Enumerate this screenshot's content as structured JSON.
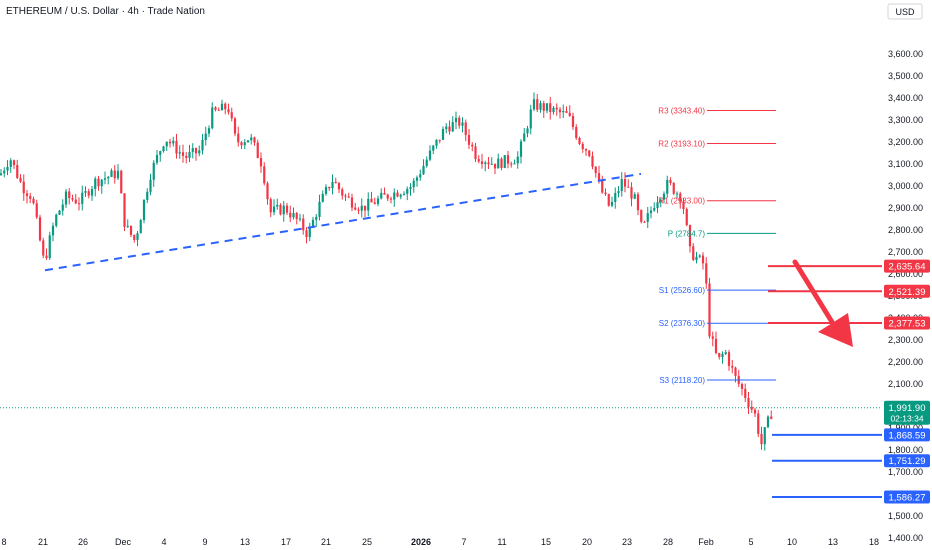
{
  "header": {
    "title": "ETHEREUM / U.S. Dollar · 4h · Trade Nation",
    "currency": "USD"
  },
  "chart_data": {
    "type": "candlestick",
    "y_axis": {
      "ylim": [
        1400,
        3700
      ],
      "ticks": [
        "3,600.00",
        "3,500.00",
        "3,400.00",
        "3,300.00",
        "3,200.00",
        "3,100.00",
        "3,000.00",
        "2,900.00",
        "2,800.00",
        "2,700.00",
        "2,600.00",
        "2,500.00",
        "2,400.00",
        "2,300.00",
        "2,200.00",
        "2,100.00",
        "2,000.00",
        "1,900.00",
        "1,800.00",
        "1,700.00",
        "1,600.00",
        "1,500.00",
        "1,400.00"
      ]
    },
    "x_axis": {
      "ticks": [
        "8",
        "21",
        "26",
        "Dec",
        "4",
        "9",
        "13",
        "17",
        "21",
        "25",
        "2026",
        "7",
        "11",
        "15",
        "20",
        "23",
        "28",
        "Feb",
        "5",
        "10",
        "13",
        "18"
      ]
    },
    "pivots": [
      {
        "label": "R3 (3343.40)",
        "value": 3343.4,
        "color": "#f23645"
      },
      {
        "label": "R2 (3193.10)",
        "value": 3193.1,
        "color": "#f23645"
      },
      {
        "label": "R1 (2933.00)",
        "value": 2933.0,
        "color": "#f23645"
      },
      {
        "label": "P (2784.7)",
        "value": 2784.7,
        "color": "#089981"
      },
      {
        "label": "S1 (2526.60)",
        "value": 2526.6,
        "color": "#2962ff"
      },
      {
        "label": "S2 (2376.30)",
        "value": 2376.3,
        "color": "#2962ff"
      },
      {
        "label": "S3 (2118.20)",
        "value": 2118.2,
        "color": "#2962ff"
      }
    ],
    "resistance_levels": [
      {
        "label": "2,635.64",
        "value": 2635.64
      },
      {
        "label": "2,521.39",
        "value": 2521.39
      },
      {
        "label": "2,377.53",
        "value": 2377.53
      }
    ],
    "support_levels": [
      {
        "label": "1,868.59",
        "value": 1868.59
      },
      {
        "label": "1,751.29",
        "value": 1751.29
      },
      {
        "label": "1,586.27",
        "value": 1586.27
      }
    ],
    "current_price": {
      "label": "1,991.90",
      "countdown": "02:13:34",
      "value": 1991.9
    },
    "trendline": {
      "from": 2617,
      "to": 3055
    },
    "trend_arrow": "down",
    "colors": {
      "up": "#089981",
      "down": "#f23645",
      "support": "#2962ff",
      "resistance": "#f23645",
      "trendline": "#2962ff"
    }
  }
}
